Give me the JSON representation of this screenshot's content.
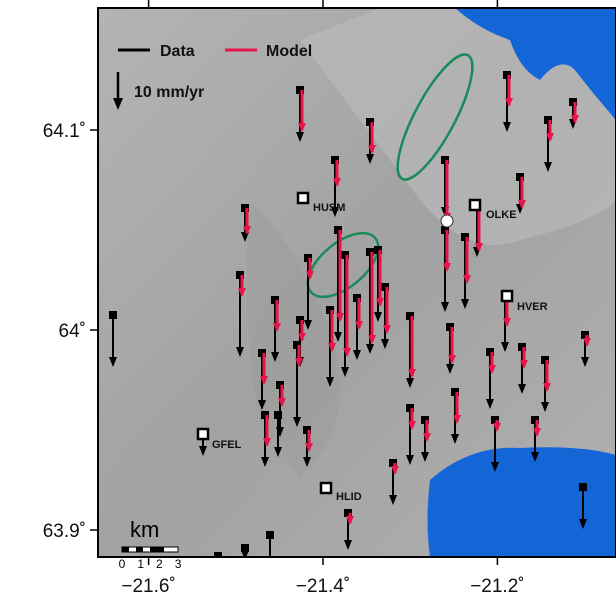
{
  "map": {
    "xticks": [
      {
        "value": -21.6,
        "label": "−21.6˚"
      },
      {
        "value": -21.4,
        "label": "−21.4˚"
      },
      {
        "value": -21.2,
        "label": "−21.2˚"
      }
    ],
    "yticks": [
      {
        "value": 64.1,
        "label": "64.1˚"
      },
      {
        "value": 64,
        "label": "64˚"
      },
      {
        "value": 63.9,
        "label": "63.9˚"
      }
    ],
    "legend": {
      "data": "Data",
      "model": "Model",
      "scale": "10 mm/yr"
    },
    "stations": [
      "HUSM",
      "OLKE",
      "HVER",
      "GFEL",
      "HLID"
    ],
    "scale_bar": {
      "title": "km",
      "labels": [
        "0",
        "1",
        "2",
        "3"
      ]
    }
  }
}
